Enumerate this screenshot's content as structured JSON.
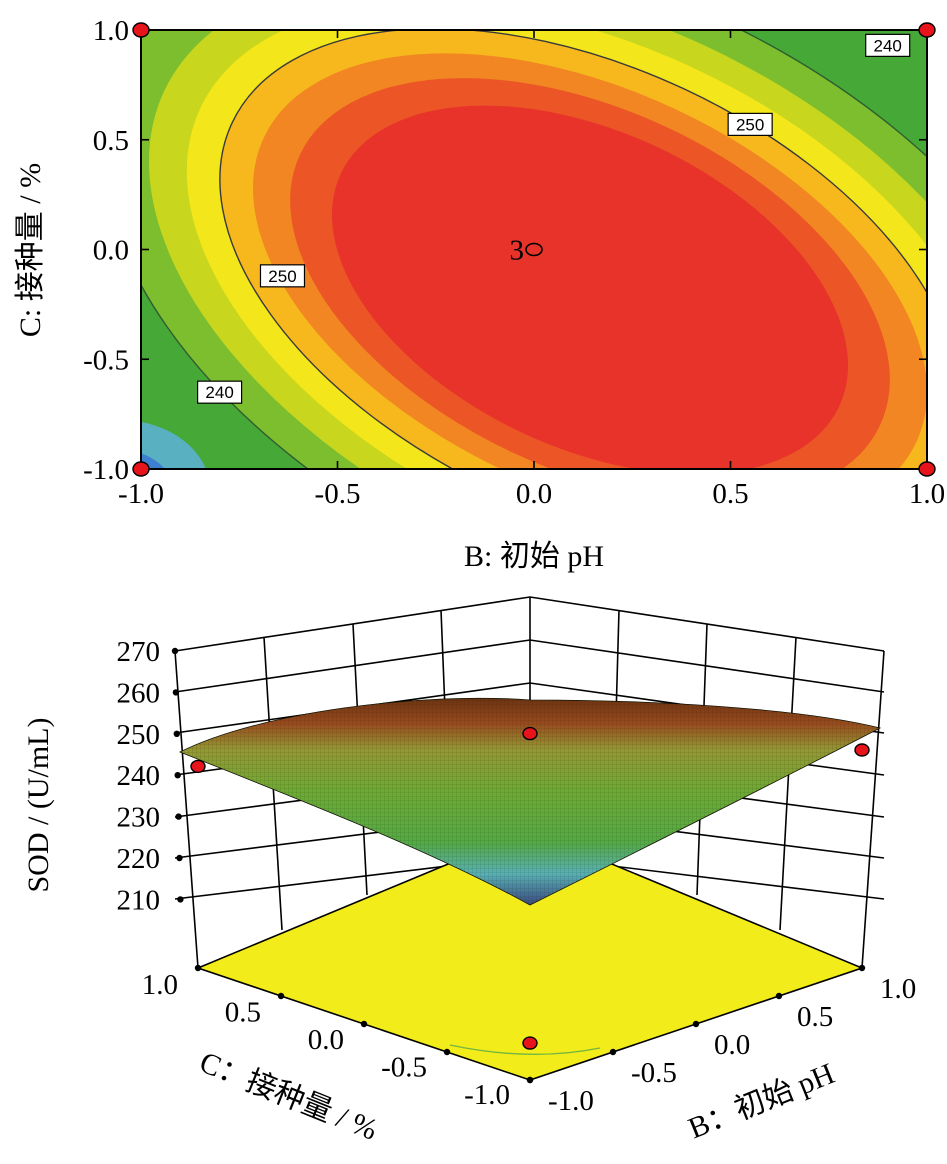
{
  "chart_data": [
    {
      "type": "heatmap",
      "subtype": "contour",
      "xlabel": "B: 初始 pH",
      "ylabel": "C: 接种量 / %",
      "xlim": [
        -1.0,
        1.0
      ],
      "ylim": [
        -1.0,
        1.0
      ],
      "x_ticks": [
        "-1.0",
        "-0.5",
        "0.0",
        "0.5",
        "1.0"
      ],
      "y_ticks": [
        "-1.0",
        "-0.5",
        "0.0",
        "0.5",
        "1.0"
      ],
      "colormap": [
        "#2b2fa0",
        "#3fb4e8",
        "#39a93a",
        "#f5e91c",
        "#e8262a"
      ],
      "contour_levels": [
        240,
        250
      ],
      "contour_labels": [
        {
          "text": "240",
          "x": 0.9,
          "y": 0.93
        },
        {
          "text": "250",
          "x": 0.55,
          "y": 0.57
        },
        {
          "text": "250",
          "x": -0.64,
          "y": -0.12
        },
        {
          "text": "240",
          "x": -0.8,
          "y": -0.65
        }
      ],
      "center_point": {
        "label": "3",
        "x": 0.0,
        "y": 0.0
      },
      "design_points": [
        {
          "x": -1.0,
          "y": 1.0
        },
        {
          "x": 1.0,
          "y": 1.0
        },
        {
          "x": -1.0,
          "y": -1.0
        },
        {
          "x": 1.0,
          "y": -1.0
        }
      ]
    },
    {
      "type": "surface",
      "zlabel": "SOD / (U/mL)",
      "xlabel": "B：初始 pH",
      "ylabel": "C：接种量 / %",
      "zlim": [
        200,
        270
      ],
      "z_ticks": [
        "270",
        "260",
        "250",
        "240",
        "230",
        "220",
        "210"
      ],
      "b_ticks": [
        "1.0",
        "0.5",
        "0.0",
        "-0.5",
        "-1.0"
      ],
      "c_ticks": [
        "1.0",
        "0.5",
        "0.0",
        "-0.5",
        "-1.0"
      ],
      "floor_color": "#f2ec1a",
      "colormap": [
        "#2b2fa0",
        "#3fb4e8",
        "#39a93a",
        "#f5e91c",
        "#a01010"
      ],
      "design_points": [
        {
          "b": -1.0,
          "c": -1.0,
          "z": 209
        },
        {
          "b": 0.0,
          "c": 0.0,
          "z": 254
        },
        {
          "b": 1.0,
          "c": -1.0,
          "z": 250
        },
        {
          "b": -1.0,
          "c": 1.0,
          "z": 246
        }
      ]
    }
  ]
}
